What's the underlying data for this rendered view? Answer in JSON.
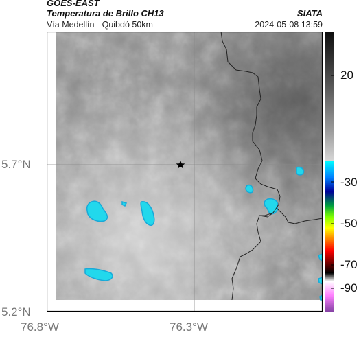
{
  "header": {
    "satellite": "GOES-EAST",
    "product": "Temperatura de Brillo CH13",
    "region": "Vía Medellín - Quibdó 50km",
    "agency": "SIATA",
    "datetime": "2024-05-08 13:59"
  },
  "map": {
    "lat_labels": [
      "5.7°N",
      "5.2°N"
    ],
    "lon_labels": [
      "76.8°W",
      "76.3°W"
    ],
    "marker_icon": "star-icon",
    "colors": {
      "cloud_cold": "#22d8ec",
      "cloud_core": "#19a9d8",
      "border_line": "#222222",
      "gridline": "#8a8a8a"
    }
  },
  "colorbar": {
    "labels": [
      "20",
      "-30",
      "-50",
      "-70",
      "-90"
    ],
    "values": [
      20,
      -30,
      -50,
      -70,
      -90
    ],
    "stops": [
      "#0d0d0d",
      "#5a5a5a",
      "#9a9a9a",
      "#d6d6d6",
      "#f4f4f4",
      "#00ffff",
      "#0080ff",
      "#00009a",
      "#00a040",
      "#80ff00",
      "#ffff00",
      "#ff8000",
      "#ff0000",
      "#800000",
      "#000000",
      "#ffffff",
      "#ff80ff",
      "#8040a0"
    ]
  }
}
